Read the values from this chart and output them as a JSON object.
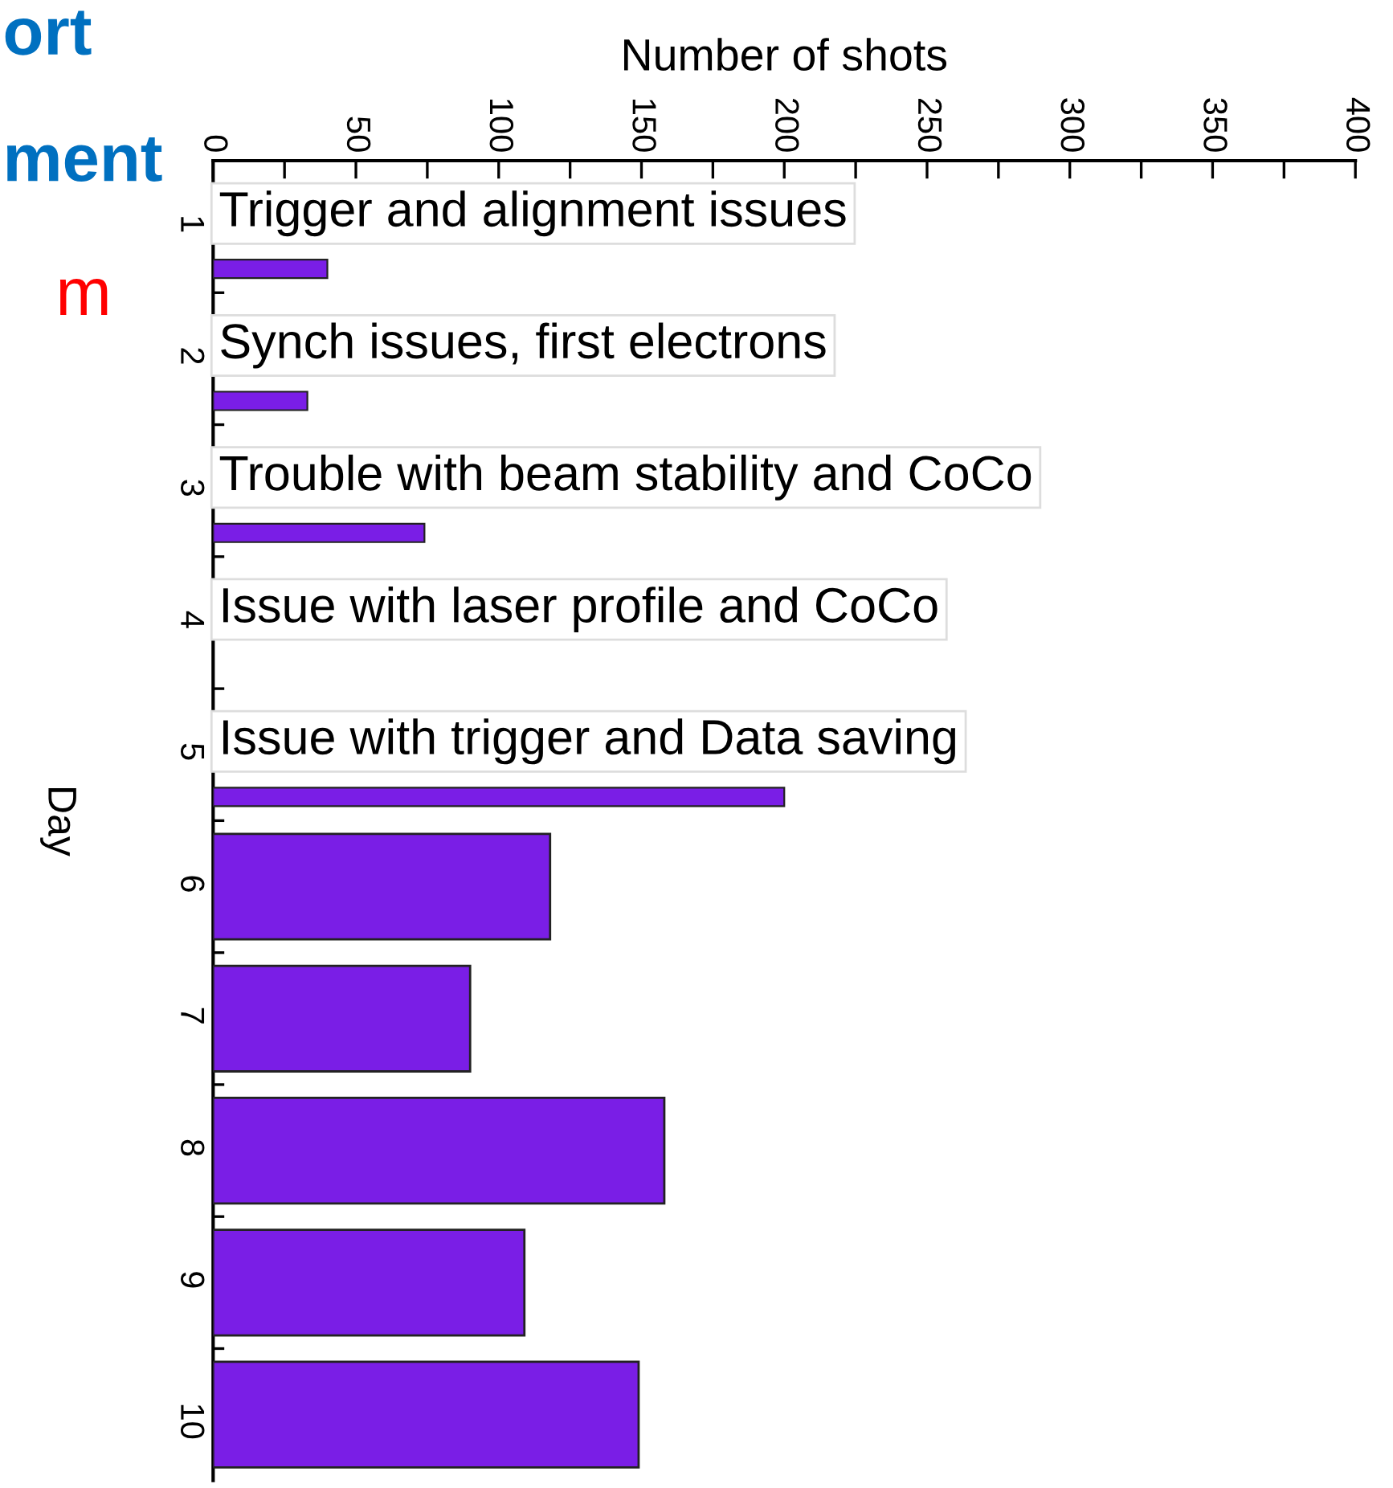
{
  "chart_data": {
    "type": "bar",
    "orientation": "horizontal",
    "xlabel": "Number of shots",
    "ylabel": "Day",
    "categories": [
      "1",
      "2",
      "3",
      "4",
      "5",
      "6",
      "7",
      "8",
      "9",
      "10"
    ],
    "values": [
      40,
      33,
      74,
      null,
      200,
      118,
      90,
      158,
      109,
      149
    ],
    "color": "#7a1ee6",
    "xlim": [
      0,
      400
    ],
    "xticks": [
      0,
      {
        "value": 25,
        "label": null
      },
      50,
      {
        "value": 75,
        "label": null
      },
      100,
      {
        "value": 125,
        "label": null
      },
      150,
      {
        "value": 175,
        "label": null
      },
      200,
      {
        "value": 225,
        "label": null
      },
      250,
      {
        "value": 275,
        "label": null
      },
      300,
      {
        "value": 325,
        "label": null
      },
      350,
      {
        "value": 375,
        "label": null
      },
      400
    ],
    "annotations": [
      "Trigger and alignment issues",
      "Synch issues, first electrons",
      "Trouble with beam stability and CoCo",
      "Issue with laser profile and CoCo",
      "Issue with trigger and Data saving",
      "ort",
      "ment",
      "m"
    ],
    "grid": false
  }
}
